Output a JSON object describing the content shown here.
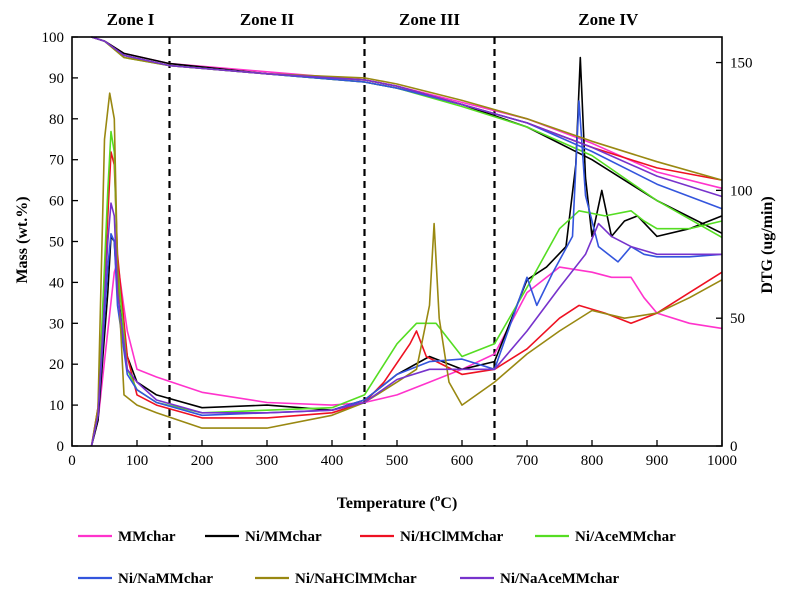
{
  "chart_data": {
    "type": "line",
    "xlabel": "Temperature (",
    "xlabel_unit": "o",
    "xlabel_tail": "C)",
    "ylabel_left": "Mass (wt.%)",
    "ylabel_right": "DTG (ug/min)",
    "xlim": [
      0,
      1000
    ],
    "ylim_left": [
      0,
      100
    ],
    "ylim_right": [
      0,
      160
    ],
    "x_ticks": [
      0,
      100,
      200,
      300,
      400,
      500,
      600,
      700,
      800,
      900,
      1000
    ],
    "y_left_ticks": [
      0,
      10,
      20,
      30,
      40,
      50,
      60,
      70,
      80,
      90,
      100
    ],
    "y_right_ticks": [
      0,
      50,
      100,
      150
    ],
    "zones": [
      {
        "label": "Zone I",
        "from": 30,
        "to": 150
      },
      {
        "label": "Zone II",
        "from": 150,
        "to": 450
      },
      {
        "label": "Zone III",
        "from": 450,
        "to": 650
      },
      {
        "label": "Zone IV",
        "from": 650,
        "to": 1000
      }
    ],
    "zone_boundaries": [
      150,
      450,
      650
    ],
    "legend_position": "bottom",
    "series": [
      {
        "name": "MMchar",
        "color": "#ff33cc",
        "mass": [
          [
            30,
            100
          ],
          [
            50,
            99
          ],
          [
            80,
            96
          ],
          [
            150,
            93.5
          ],
          [
            300,
            91.5
          ],
          [
            450,
            89.5
          ],
          [
            500,
            88
          ],
          [
            600,
            84
          ],
          [
            700,
            80
          ],
          [
            800,
            74
          ],
          [
            900,
            67
          ],
          [
            1000,
            63
          ]
        ],
        "dtg": [
          [
            30,
            0
          ],
          [
            40,
            10
          ],
          [
            55,
            45
          ],
          [
            65,
            68
          ],
          [
            70,
            72
          ],
          [
            85,
            45
          ],
          [
            100,
            30
          ],
          [
            130,
            27
          ],
          [
            200,
            21
          ],
          [
            300,
            17
          ],
          [
            400,
            16
          ],
          [
            450,
            17
          ],
          [
            500,
            20
          ],
          [
            550,
            25
          ],
          [
            600,
            30
          ],
          [
            650,
            36
          ],
          [
            700,
            60
          ],
          [
            750,
            70
          ],
          [
            800,
            68
          ],
          [
            830,
            66
          ],
          [
            860,
            66
          ],
          [
            880,
            58
          ],
          [
            900,
            52
          ],
          [
            950,
            48
          ],
          [
            1000,
            46
          ]
        ]
      },
      {
        "name": "Ni/MMchar",
        "color": "#000000",
        "mass": [
          [
            30,
            100
          ],
          [
            50,
            99
          ],
          [
            80,
            96
          ],
          [
            150,
            93.5
          ],
          [
            300,
            91
          ],
          [
            450,
            89
          ],
          [
            500,
            87.5
          ],
          [
            600,
            83.5
          ],
          [
            700,
            78
          ],
          [
            800,
            70
          ],
          [
            900,
            60
          ],
          [
            1000,
            52
          ]
        ],
        "dtg": [
          [
            30,
            0
          ],
          [
            40,
            10
          ],
          [
            55,
            60
          ],
          [
            60,
            82
          ],
          [
            65,
            80
          ],
          [
            70,
            60
          ],
          [
            85,
            35
          ],
          [
            100,
            25
          ],
          [
            130,
            20
          ],
          [
            200,
            15
          ],
          [
            300,
            16
          ],
          [
            400,
            14
          ],
          [
            450,
            18
          ],
          [
            500,
            28
          ],
          [
            550,
            35
          ],
          [
            600,
            30
          ],
          [
            650,
            33
          ],
          [
            700,
            65
          ],
          [
            730,
            70
          ],
          [
            760,
            78
          ],
          [
            775,
            110
          ],
          [
            782,
            152
          ],
          [
            790,
            105
          ],
          [
            800,
            82
          ],
          [
            815,
            100
          ],
          [
            830,
            82
          ],
          [
            850,
            88
          ],
          [
            870,
            90
          ],
          [
            900,
            82
          ],
          [
            950,
            85
          ],
          [
            1000,
            90
          ]
        ]
      },
      {
        "name": "Ni/HClMMchar",
        "color": "#ee1122",
        "mass": [
          [
            30,
            100
          ],
          [
            50,
            99
          ],
          [
            80,
            95.5
          ],
          [
            150,
            93
          ],
          [
            300,
            91
          ],
          [
            450,
            89.5
          ],
          [
            500,
            88
          ],
          [
            600,
            83.5
          ],
          [
            700,
            79
          ],
          [
            800,
            73
          ],
          [
            900,
            68
          ],
          [
            1000,
            65
          ]
        ],
        "dtg": [
          [
            30,
            0
          ],
          [
            40,
            15
          ],
          [
            55,
            90
          ],
          [
            60,
            115
          ],
          [
            65,
            110
          ],
          [
            70,
            75
          ],
          [
            85,
            35
          ],
          [
            100,
            20
          ],
          [
            130,
            16
          ],
          [
            200,
            11
          ],
          [
            300,
            11
          ],
          [
            400,
            13
          ],
          [
            450,
            17
          ],
          [
            480,
            25
          ],
          [
            520,
            40
          ],
          [
            530,
            45
          ],
          [
            545,
            35
          ],
          [
            600,
            28
          ],
          [
            650,
            30
          ],
          [
            700,
            38
          ],
          [
            750,
            50
          ],
          [
            780,
            55
          ],
          [
            820,
            52
          ],
          [
            860,
            48
          ],
          [
            900,
            52
          ],
          [
            950,
            60
          ],
          [
            1000,
            68
          ]
        ]
      },
      {
        "name": "Ni/AceMMchar",
        "color": "#55dd22",
        "mass": [
          [
            30,
            100
          ],
          [
            50,
            99
          ],
          [
            80,
            95
          ],
          [
            150,
            93
          ],
          [
            300,
            91
          ],
          [
            450,
            89
          ],
          [
            500,
            87.5
          ],
          [
            600,
            83
          ],
          [
            700,
            78
          ],
          [
            800,
            71
          ],
          [
            900,
            60
          ],
          [
            1000,
            51
          ]
        ],
        "dtg": [
          [
            30,
            0
          ],
          [
            40,
            12
          ],
          [
            55,
            100
          ],
          [
            60,
            123
          ],
          [
            65,
            115
          ],
          [
            70,
            70
          ],
          [
            85,
            30
          ],
          [
            100,
            22
          ],
          [
            130,
            17
          ],
          [
            200,
            13
          ],
          [
            300,
            14
          ],
          [
            400,
            15
          ],
          [
            450,
            20
          ],
          [
            500,
            40
          ],
          [
            530,
            48
          ],
          [
            560,
            48
          ],
          [
            600,
            35
          ],
          [
            650,
            40
          ],
          [
            700,
            62
          ],
          [
            750,
            85
          ],
          [
            780,
            92
          ],
          [
            820,
            90
          ],
          [
            860,
            92
          ],
          [
            880,
            88
          ],
          [
            900,
            85
          ],
          [
            950,
            85
          ],
          [
            1000,
            88
          ]
        ]
      },
      {
        "name": "Ni/NaMMchar",
        "color": "#3355dd",
        "mass": [
          [
            30,
            100
          ],
          [
            50,
            99
          ],
          [
            80,
            95.5
          ],
          [
            150,
            93
          ],
          [
            300,
            91
          ],
          [
            450,
            89
          ],
          [
            500,
            87.5
          ],
          [
            600,
            83.5
          ],
          [
            700,
            79
          ],
          [
            800,
            72
          ],
          [
            900,
            64
          ],
          [
            1000,
            58
          ]
        ],
        "dtg": [
          [
            30,
            0
          ],
          [
            40,
            12
          ],
          [
            55,
            70
          ],
          [
            60,
            83
          ],
          [
            65,
            80
          ],
          [
            70,
            55
          ],
          [
            85,
            28
          ],
          [
            100,
            22
          ],
          [
            130,
            17
          ],
          [
            200,
            12
          ],
          [
            300,
            13
          ],
          [
            400,
            14
          ],
          [
            450,
            18
          ],
          [
            500,
            28
          ],
          [
            550,
            33
          ],
          [
            600,
            34
          ],
          [
            650,
            30
          ],
          [
            700,
            66
          ],
          [
            715,
            55
          ],
          [
            740,
            68
          ],
          [
            770,
            82
          ],
          [
            780,
            135
          ],
          [
            790,
            98
          ],
          [
            810,
            78
          ],
          [
            840,
            72
          ],
          [
            860,
            78
          ],
          [
            880,
            75
          ],
          [
            900,
            74
          ],
          [
            950,
            74
          ],
          [
            1000,
            75
          ]
        ]
      },
      {
        "name": "Ni/NaHClMMchar",
        "color": "#998811",
        "mass": [
          [
            30,
            100
          ],
          [
            50,
            99
          ],
          [
            80,
            95
          ],
          [
            150,
            93
          ],
          [
            300,
            91
          ],
          [
            450,
            90
          ],
          [
            500,
            88.5
          ],
          [
            600,
            84.5
          ],
          [
            700,
            80
          ],
          [
            800,
            74.5
          ],
          [
            900,
            69.5
          ],
          [
            1000,
            65
          ]
        ],
        "dtg": [
          [
            30,
            0
          ],
          [
            40,
            15
          ],
          [
            50,
            120
          ],
          [
            58,
            138
          ],
          [
            65,
            128
          ],
          [
            70,
            70
          ],
          [
            80,
            20
          ],
          [
            100,
            16
          ],
          [
            130,
            13
          ],
          [
            200,
            7
          ],
          [
            300,
            7
          ],
          [
            400,
            12
          ],
          [
            450,
            17
          ],
          [
            500,
            25
          ],
          [
            530,
            30
          ],
          [
            550,
            55
          ],
          [
            557,
            87
          ],
          [
            565,
            50
          ],
          [
            580,
            25
          ],
          [
            600,
            16
          ],
          [
            650,
            25
          ],
          [
            700,
            36
          ],
          [
            750,
            45
          ],
          [
            800,
            53
          ],
          [
            850,
            50
          ],
          [
            900,
            52
          ],
          [
            950,
            58
          ],
          [
            1000,
            65
          ]
        ]
      },
      {
        "name": "Ni/NaAceMMchar",
        "color": "#7733cc",
        "mass": [
          [
            30,
            100
          ],
          [
            50,
            99
          ],
          [
            80,
            95.5
          ],
          [
            150,
            93
          ],
          [
            300,
            91
          ],
          [
            450,
            89.5
          ],
          [
            500,
            88
          ],
          [
            600,
            83.5
          ],
          [
            700,
            79
          ],
          [
            800,
            73
          ],
          [
            900,
            66
          ],
          [
            1000,
            61
          ]
        ],
        "dtg": [
          [
            30,
            0
          ],
          [
            40,
            12
          ],
          [
            55,
            80
          ],
          [
            60,
            95
          ],
          [
            65,
            90
          ],
          [
            70,
            60
          ],
          [
            85,
            30
          ],
          [
            100,
            25
          ],
          [
            130,
            18
          ],
          [
            200,
            13
          ],
          [
            300,
            13
          ],
          [
            400,
            14
          ],
          [
            450,
            17
          ],
          [
            500,
            26
          ],
          [
            550,
            30
          ],
          [
            600,
            30
          ],
          [
            650,
            30
          ],
          [
            700,
            45
          ],
          [
            750,
            62
          ],
          [
            790,
            75
          ],
          [
            810,
            87
          ],
          [
            830,
            82
          ],
          [
            860,
            78
          ],
          [
            900,
            75
          ],
          [
            950,
            75
          ],
          [
            1000,
            75
          ]
        ]
      }
    ]
  }
}
